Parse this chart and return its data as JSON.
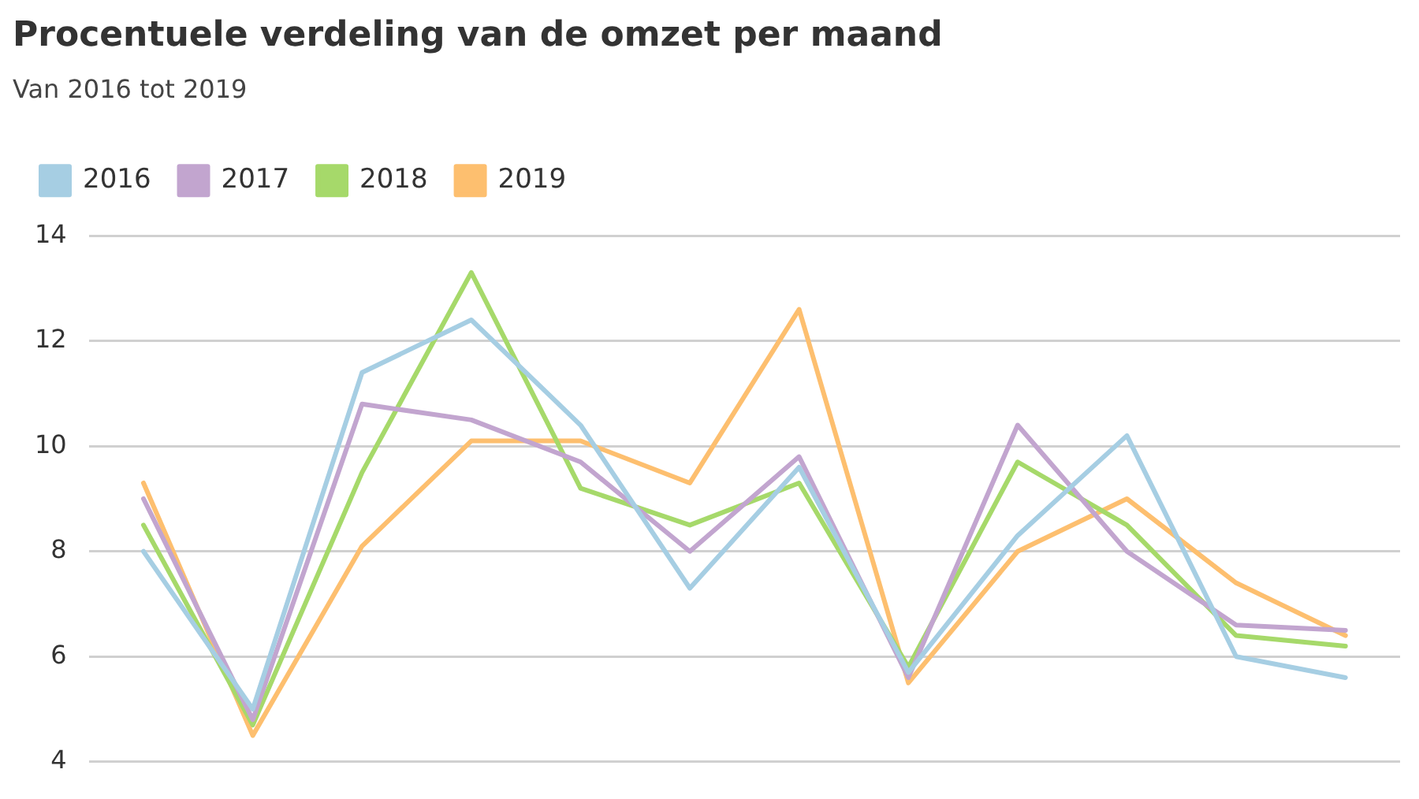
{
  "chart_data": {
    "type": "line",
    "title": "Procentuele verdeling van de omzet per maand",
    "subtitle": "Van 2016 tot 2019",
    "categories": [
      null,
      null,
      null,
      null,
      null,
      null,
      null,
      null,
      null,
      null,
      null,
      null
    ],
    "series": [
      {
        "name": "2016",
        "color": "#a6cee3",
        "values": [
          8.0,
          5.0,
          11.4,
          12.4,
          10.4,
          7.3,
          9.6,
          5.7,
          8.3,
          10.2,
          6.0,
          5.6
        ]
      },
      {
        "name": "2017",
        "color": "#c2a5cf",
        "values": [
          9.0,
          4.8,
          10.8,
          10.5,
          9.7,
          8.0,
          9.8,
          5.6,
          10.4,
          8.0,
          6.6,
          6.5
        ]
      },
      {
        "name": "2018",
        "color": "#a6d96a",
        "values": [
          8.5,
          4.7,
          9.5,
          13.3,
          9.2,
          8.5,
          9.3,
          5.8,
          9.7,
          8.5,
          6.4,
          6.2
        ]
      },
      {
        "name": "2019",
        "color": "#fdbf6f",
        "values": [
          9.3,
          4.5,
          8.1,
          10.1,
          10.1,
          9.3,
          12.6,
          5.5,
          8.0,
          9.0,
          7.4,
          6.4
        ]
      }
    ],
    "ylim": [
      4,
      14
    ],
    "yticks": [
      4,
      6,
      8,
      10,
      12,
      14
    ],
    "grid": "y",
    "legend": "top left",
    "tick_labels": "y",
    "marker": "none",
    "line_style": "solid"
  }
}
